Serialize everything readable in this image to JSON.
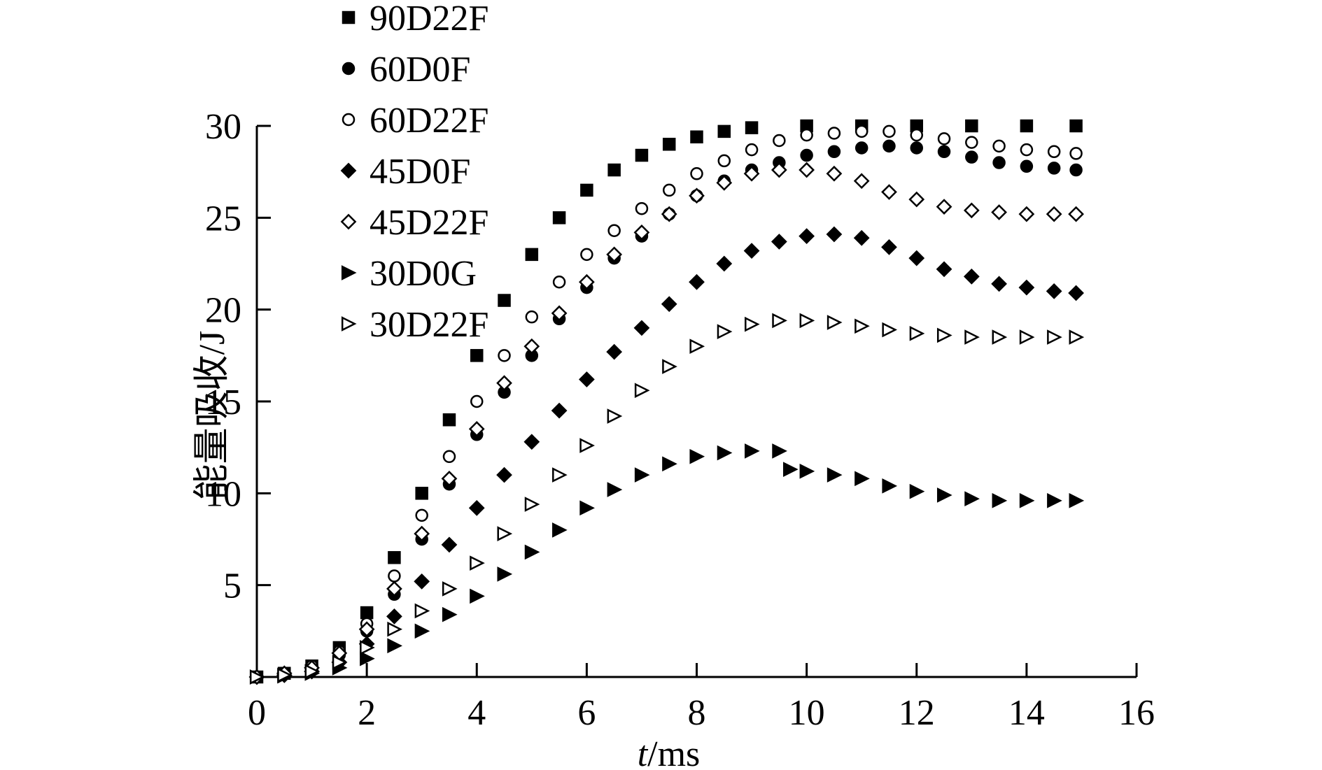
{
  "chart_data": {
    "type": "scatter",
    "title": "",
    "xlabel_italic": "t",
    "xlabel_unit": "/ms",
    "ylabel": "能量吸收/J",
    "xlim": [
      0,
      16
    ],
    "ylim": [
      0,
      30
    ],
    "x_ticks": [
      0,
      2,
      4,
      6,
      8,
      10,
      12,
      14,
      16
    ],
    "x_tick_labels": [
      "0",
      "2",
      "4",
      "6",
      "8",
      "10",
      "12",
      "14",
      "16"
    ],
    "y_ticks": [
      5,
      10,
      15,
      20,
      25,
      30
    ],
    "y_tick_labels": [
      "5",
      "10",
      "15",
      "20",
      "25",
      "30"
    ],
    "legend_position": "top-left",
    "series": [
      {
        "name": "90D22F",
        "marker": "square-filled",
        "points": [
          [
            0,
            0
          ],
          [
            0.5,
            0.2
          ],
          [
            1,
            0.6
          ],
          [
            1.5,
            1.6
          ],
          [
            2,
            3.5
          ],
          [
            2.5,
            6.5
          ],
          [
            3,
            10
          ],
          [
            3.5,
            14
          ],
          [
            4,
            17.5
          ],
          [
            4.5,
            20.5
          ],
          [
            5,
            23
          ],
          [
            5.5,
            25
          ],
          [
            6,
            26.5
          ],
          [
            6.5,
            27.6
          ],
          [
            7,
            28.4
          ],
          [
            7.5,
            29
          ],
          [
            8,
            29.4
          ],
          [
            8.5,
            29.7
          ],
          [
            9,
            29.9
          ],
          [
            10,
            30
          ],
          [
            11,
            30
          ],
          [
            12,
            30
          ],
          [
            13,
            30
          ],
          [
            14,
            30
          ],
          [
            14.9,
            30
          ]
        ]
      },
      {
        "name": "60D0F",
        "marker": "circle-filled",
        "points": [
          [
            0,
            0
          ],
          [
            0.5,
            0.2
          ],
          [
            1,
            0.5
          ],
          [
            1.5,
            1.2
          ],
          [
            2,
            2.5
          ],
          [
            2.5,
            4.5
          ],
          [
            3,
            7.5
          ],
          [
            3.5,
            10.5
          ],
          [
            4,
            13.2
          ],
          [
            4.5,
            15.5
          ],
          [
            5,
            17.5
          ],
          [
            5.5,
            19.5
          ],
          [
            6,
            21.2
          ],
          [
            6.5,
            22.8
          ],
          [
            7,
            24
          ],
          [
            7.5,
            25.2
          ],
          [
            8,
            26.2
          ],
          [
            8.5,
            27
          ],
          [
            9,
            27.6
          ],
          [
            9.5,
            28
          ],
          [
            10,
            28.4
          ],
          [
            10.5,
            28.6
          ],
          [
            11,
            28.8
          ],
          [
            11.5,
            28.9
          ],
          [
            12,
            28.8
          ],
          [
            12.5,
            28.6
          ],
          [
            13,
            28.3
          ],
          [
            13.5,
            28
          ],
          [
            14,
            27.8
          ],
          [
            14.5,
            27.7
          ],
          [
            14.9,
            27.6
          ]
        ]
      },
      {
        "name": "60D22F",
        "marker": "circle-open",
        "points": [
          [
            0,
            0
          ],
          [
            0.5,
            0.2
          ],
          [
            1,
            0.6
          ],
          [
            1.5,
            1.4
          ],
          [
            2,
            2.9
          ],
          [
            2.5,
            5.5
          ],
          [
            3,
            8.8
          ],
          [
            3.5,
            12
          ],
          [
            4,
            15
          ],
          [
            4.5,
            17.5
          ],
          [
            5,
            19.6
          ],
          [
            5.5,
            21.5
          ],
          [
            6,
            23
          ],
          [
            6.5,
            24.3
          ],
          [
            7,
            25.5
          ],
          [
            7.5,
            26.5
          ],
          [
            8,
            27.4
          ],
          [
            8.5,
            28.1
          ],
          [
            9,
            28.7
          ],
          [
            9.5,
            29.2
          ],
          [
            10,
            29.5
          ],
          [
            10.5,
            29.6
          ],
          [
            11,
            29.7
          ],
          [
            11.5,
            29.7
          ],
          [
            12,
            29.5
          ],
          [
            12.5,
            29.3
          ],
          [
            13,
            29.1
          ],
          [
            13.5,
            28.9
          ],
          [
            14,
            28.7
          ],
          [
            14.5,
            28.6
          ],
          [
            14.9,
            28.5
          ]
        ]
      },
      {
        "name": "45D0F",
        "marker": "diamond-filled",
        "points": [
          [
            0,
            0
          ],
          [
            0.5,
            0.1
          ],
          [
            1,
            0.3
          ],
          [
            1.5,
            0.8
          ],
          [
            2,
            1.8
          ],
          [
            2.5,
            3.3
          ],
          [
            3,
            5.2
          ],
          [
            3.5,
            7.2
          ],
          [
            4,
            9.2
          ],
          [
            4.5,
            11
          ],
          [
            5,
            12.8
          ],
          [
            5.5,
            14.5
          ],
          [
            6,
            16.2
          ],
          [
            6.5,
            17.7
          ],
          [
            7,
            19
          ],
          [
            7.5,
            20.3
          ],
          [
            8,
            21.5
          ],
          [
            8.5,
            22.5
          ],
          [
            9,
            23.2
          ],
          [
            9.5,
            23.7
          ],
          [
            10,
            24
          ],
          [
            10.5,
            24.1
          ],
          [
            11,
            23.9
          ],
          [
            11.5,
            23.4
          ],
          [
            12,
            22.8
          ],
          [
            12.5,
            22.2
          ],
          [
            13,
            21.8
          ],
          [
            13.5,
            21.4
          ],
          [
            14,
            21.2
          ],
          [
            14.5,
            21
          ],
          [
            14.9,
            20.9
          ]
        ]
      },
      {
        "name": "45D22F",
        "marker": "diamond-open",
        "points": [
          [
            0,
            0
          ],
          [
            0.5,
            0.2
          ],
          [
            1,
            0.5
          ],
          [
            1.5,
            1.3
          ],
          [
            2,
            2.6
          ],
          [
            2.5,
            4.8
          ],
          [
            3,
            7.8
          ],
          [
            3.5,
            10.8
          ],
          [
            4,
            13.5
          ],
          [
            4.5,
            16
          ],
          [
            5,
            18
          ],
          [
            5.5,
            19.8
          ],
          [
            6,
            21.5
          ],
          [
            6.5,
            23
          ],
          [
            7,
            24.2
          ],
          [
            7.5,
            25.2
          ],
          [
            8,
            26.2
          ],
          [
            8.5,
            26.9
          ],
          [
            9,
            27.4
          ],
          [
            9.5,
            27.6
          ],
          [
            10,
            27.6
          ],
          [
            10.5,
            27.4
          ],
          [
            11,
            27
          ],
          [
            11.5,
            26.4
          ],
          [
            12,
            26
          ],
          [
            12.5,
            25.6
          ],
          [
            13,
            25.4
          ],
          [
            13.5,
            25.3
          ],
          [
            14,
            25.2
          ],
          [
            14.5,
            25.2
          ],
          [
            14.9,
            25.2
          ]
        ]
      },
      {
        "name": "30D0G",
        "marker": "triangle-right-filled",
        "points": [
          [
            0,
            0
          ],
          [
            0.5,
            0.05
          ],
          [
            1,
            0.2
          ],
          [
            1.5,
            0.5
          ],
          [
            2,
            1
          ],
          [
            2.5,
            1.7
          ],
          [
            3,
            2.5
          ],
          [
            3.5,
            3.4
          ],
          [
            4,
            4.4
          ],
          [
            4.5,
            5.6
          ],
          [
            5,
            6.8
          ],
          [
            5.5,
            8
          ],
          [
            6,
            9.2
          ],
          [
            6.5,
            10.2
          ],
          [
            7,
            11
          ],
          [
            7.5,
            11.6
          ],
          [
            8,
            12
          ],
          [
            8.5,
            12.2
          ],
          [
            9,
            12.3
          ],
          [
            9.5,
            12.3
          ],
          [
            9.7,
            11.3
          ],
          [
            10,
            11.2
          ],
          [
            10.5,
            11
          ],
          [
            11,
            10.8
          ],
          [
            11.5,
            10.4
          ],
          [
            12,
            10.1
          ],
          [
            12.5,
            9.9
          ],
          [
            13,
            9.7
          ],
          [
            13.5,
            9.6
          ],
          [
            14,
            9.6
          ],
          [
            14.5,
            9.6
          ],
          [
            14.9,
            9.6
          ]
        ]
      },
      {
        "name": "30D22F",
        "marker": "triangle-right-open",
        "points": [
          [
            0,
            0
          ],
          [
            0.5,
            0.1
          ],
          [
            1,
            0.3
          ],
          [
            1.5,
            0.8
          ],
          [
            2,
            1.6
          ],
          [
            2.5,
            2.6
          ],
          [
            3,
            3.6
          ],
          [
            3.5,
            4.8
          ],
          [
            4,
            6.2
          ],
          [
            4.5,
            7.8
          ],
          [
            5,
            9.4
          ],
          [
            5.5,
            11
          ],
          [
            6,
            12.6
          ],
          [
            6.5,
            14.2
          ],
          [
            7,
            15.6
          ],
          [
            7.5,
            16.9
          ],
          [
            8,
            18
          ],
          [
            8.5,
            18.8
          ],
          [
            9,
            19.2
          ],
          [
            9.5,
            19.4
          ],
          [
            10,
            19.4
          ],
          [
            10.5,
            19.3
          ],
          [
            11,
            19.1
          ],
          [
            11.5,
            18.9
          ],
          [
            12,
            18.7
          ],
          [
            12.5,
            18.6
          ],
          [
            13,
            18.5
          ],
          [
            13.5,
            18.5
          ],
          [
            14,
            18.5
          ],
          [
            14.5,
            18.5
          ],
          [
            14.9,
            18.5
          ]
        ]
      }
    ]
  }
}
